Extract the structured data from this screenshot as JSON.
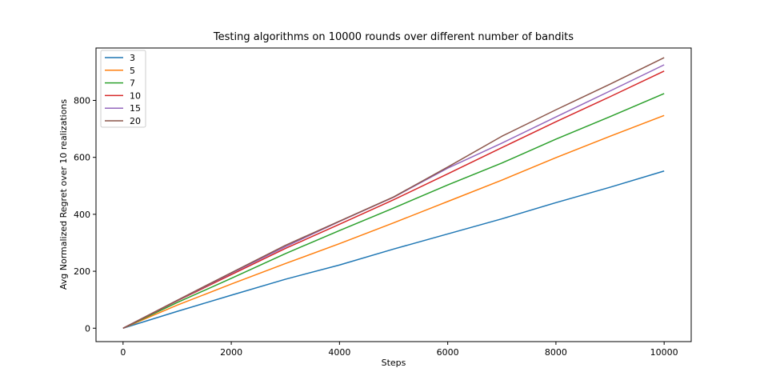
{
  "chart_data": {
    "type": "line",
    "title": "Testing algorithms on 10000 rounds over different number of bandits",
    "xlabel": "Steps",
    "ylabel": "Avg Normalized Regret over 10 realizations",
    "xlim": [
      -500,
      10500
    ],
    "ylim": [
      -47,
      984
    ],
    "xticks": [
      0,
      2000,
      4000,
      6000,
      8000,
      10000
    ],
    "yticks": [
      0,
      200,
      400,
      600,
      800
    ],
    "grid": false,
    "legend_position": "top-left",
    "x": [
      0,
      1000,
      2000,
      3000,
      4000,
      5000,
      6000,
      7000,
      8000,
      9000,
      10000
    ],
    "series": [
      {
        "name": "3",
        "color": "#1f77b4",
        "values": [
          0,
          59,
          116,
          172,
          222,
          278,
          331,
          384,
          441,
          495,
          552
        ]
      },
      {
        "name": "5",
        "color": "#ff7f0e",
        "values": [
          0,
          81,
          155,
          227,
          297,
          370,
          445,
          520,
          599,
          674,
          747
        ]
      },
      {
        "name": "7",
        "color": "#2ca02c",
        "values": [
          0,
          90,
          175,
          262,
          343,
          422,
          503,
          580,
          664,
          743,
          824
        ]
      },
      {
        "name": "10",
        "color": "#d62728",
        "values": [
          0,
          96,
          188,
          280,
          365,
          451,
          542,
          634,
          725,
          813,
          903
        ]
      },
      {
        "name": "15",
        "color": "#9467bd",
        "values": [
          0,
          97,
          193,
          286,
          375,
          460,
          562,
          650,
          742,
          833,
          925
        ]
      },
      {
        "name": "20",
        "color": "#8c564b",
        "values": [
          0,
          98,
          195,
          291,
          376,
          461,
          566,
          674,
          767,
          857,
          950
        ]
      }
    ]
  }
}
